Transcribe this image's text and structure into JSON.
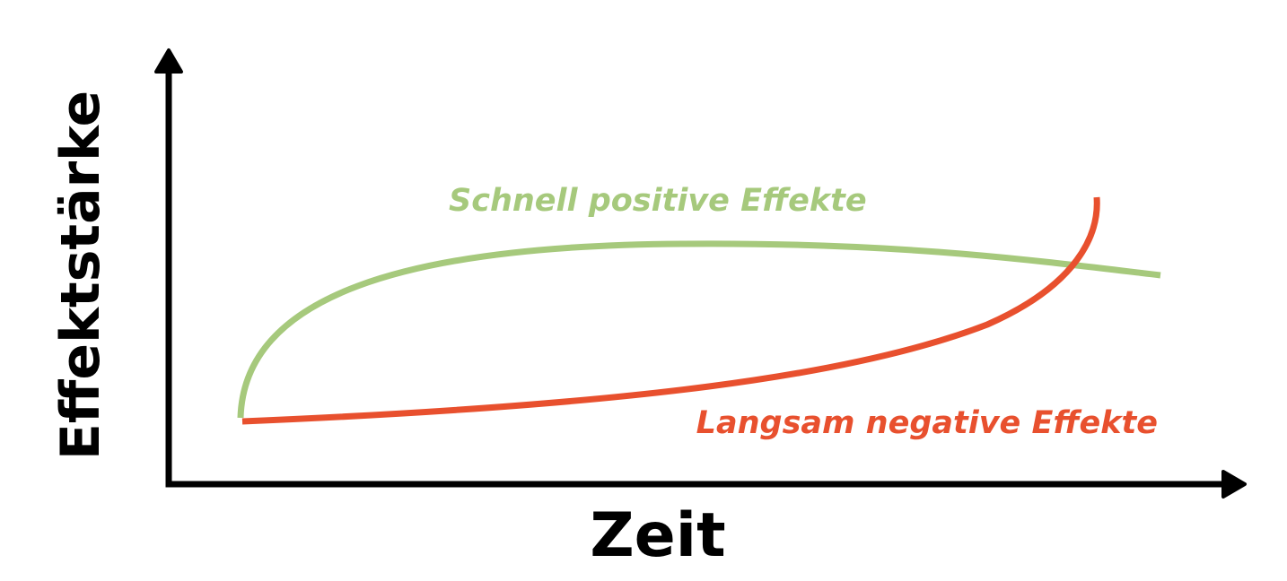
{
  "axes": {
    "y_label": "Effektstärke",
    "x_label": "Zeit"
  },
  "curves": [
    {
      "label": "Schnell positive Effekte",
      "color": "#a6c97c"
    },
    {
      "label": "Langsam negative Effekte",
      "color": "#e8502e"
    }
  ]
}
